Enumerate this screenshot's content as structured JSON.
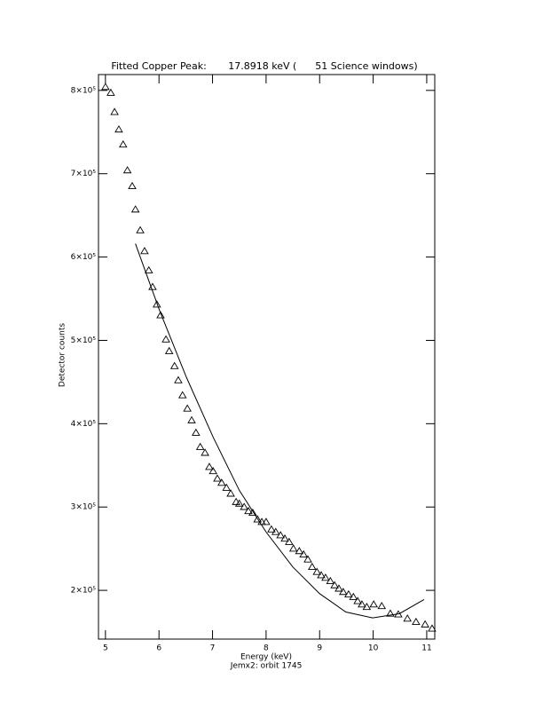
{
  "chart_data": {
    "type": "scatter",
    "title": "Fitted Copper Peak:       17.8918 keV (      51 Science windows)",
    "x_label": "Energy (keV)",
    "y_label": "Detector counts",
    "subtitle": "Jemx2: orbit 1745",
    "xlim": [
      4.87,
      11.15
    ],
    "ylim": [
      141500,
      819000
    ],
    "xticks": [
      5,
      6,
      7,
      8,
      9,
      10,
      11
    ],
    "yticks": [
      {
        "value": 200000,
        "label": "2×10⁵"
      },
      {
        "value": 300000,
        "label": "3×10⁵"
      },
      {
        "value": 400000,
        "label": "4×10⁵"
      },
      {
        "value": 500000,
        "label": "5×10⁵"
      },
      {
        "value": 600000,
        "label": "6×10⁵"
      },
      {
        "value": 700000,
        "label": "7×10⁵"
      },
      {
        "value": 800000,
        "label": "8×10⁵"
      }
    ],
    "series": [
      {
        "style": "triangle",
        "color": "#000000",
        "x": [
          5.0,
          5.1,
          5.17,
          5.25,
          5.33,
          5.41,
          5.5,
          5.56,
          5.65,
          5.73,
          5.81,
          5.88,
          5.96,
          6.03,
          6.13,
          6.19,
          6.29,
          6.36,
          6.44,
          6.53,
          6.61,
          6.69,
          6.77,
          6.86,
          6.94,
          7.01,
          7.09,
          7.17,
          7.26,
          7.34,
          7.44,
          7.5,
          7.59,
          7.67,
          7.75,
          7.84,
          7.92,
          8.0,
          8.1,
          8.18,
          8.27,
          8.35,
          8.43,
          8.51,
          8.62,
          8.7,
          8.78,
          8.86,
          8.95,
          9.03,
          9.11,
          9.2,
          9.28,
          9.36,
          9.44,
          9.54,
          9.63,
          9.71,
          9.79,
          9.88,
          10.01,
          10.16,
          10.32,
          10.47,
          10.64,
          10.8,
          10.97,
          11.1
        ],
        "values": [
          804000,
          797000,
          774000,
          753000,
          735000,
          704000,
          685000,
          657000,
          632000,
          607000,
          584000,
          564000,
          543000,
          530000,
          501000,
          487000,
          469000,
          452000,
          434000,
          418000,
          404000,
          389000,
          372000,
          365000,
          348000,
          343000,
          334000,
          329000,
          323000,
          316000,
          306000,
          304000,
          300000,
          295000,
          293000,
          285000,
          282000,
          282000,
          273000,
          270000,
          266000,
          262000,
          258000,
          250000,
          247000,
          243000,
          237000,
          228000,
          222000,
          218000,
          215000,
          211000,
          206000,
          202000,
          198000,
          195000,
          192000,
          187000,
          183000,
          180000,
          183000,
          181000,
          172000,
          171000,
          166000,
          162000,
          159000,
          154000
        ]
      },
      {
        "style": "line",
        "color": "#000000",
        "x": [
          5.56,
          6.01,
          6.51,
          7.01,
          7.5,
          8.0,
          8.5,
          9.0,
          9.49,
          9.99,
          10.49,
          10.95
        ],
        "values": [
          616000,
          536000,
          456000,
          384000,
          320000,
          270000,
          228000,
          196000,
          174000,
          167000,
          172000,
          189000
        ]
      }
    ]
  }
}
